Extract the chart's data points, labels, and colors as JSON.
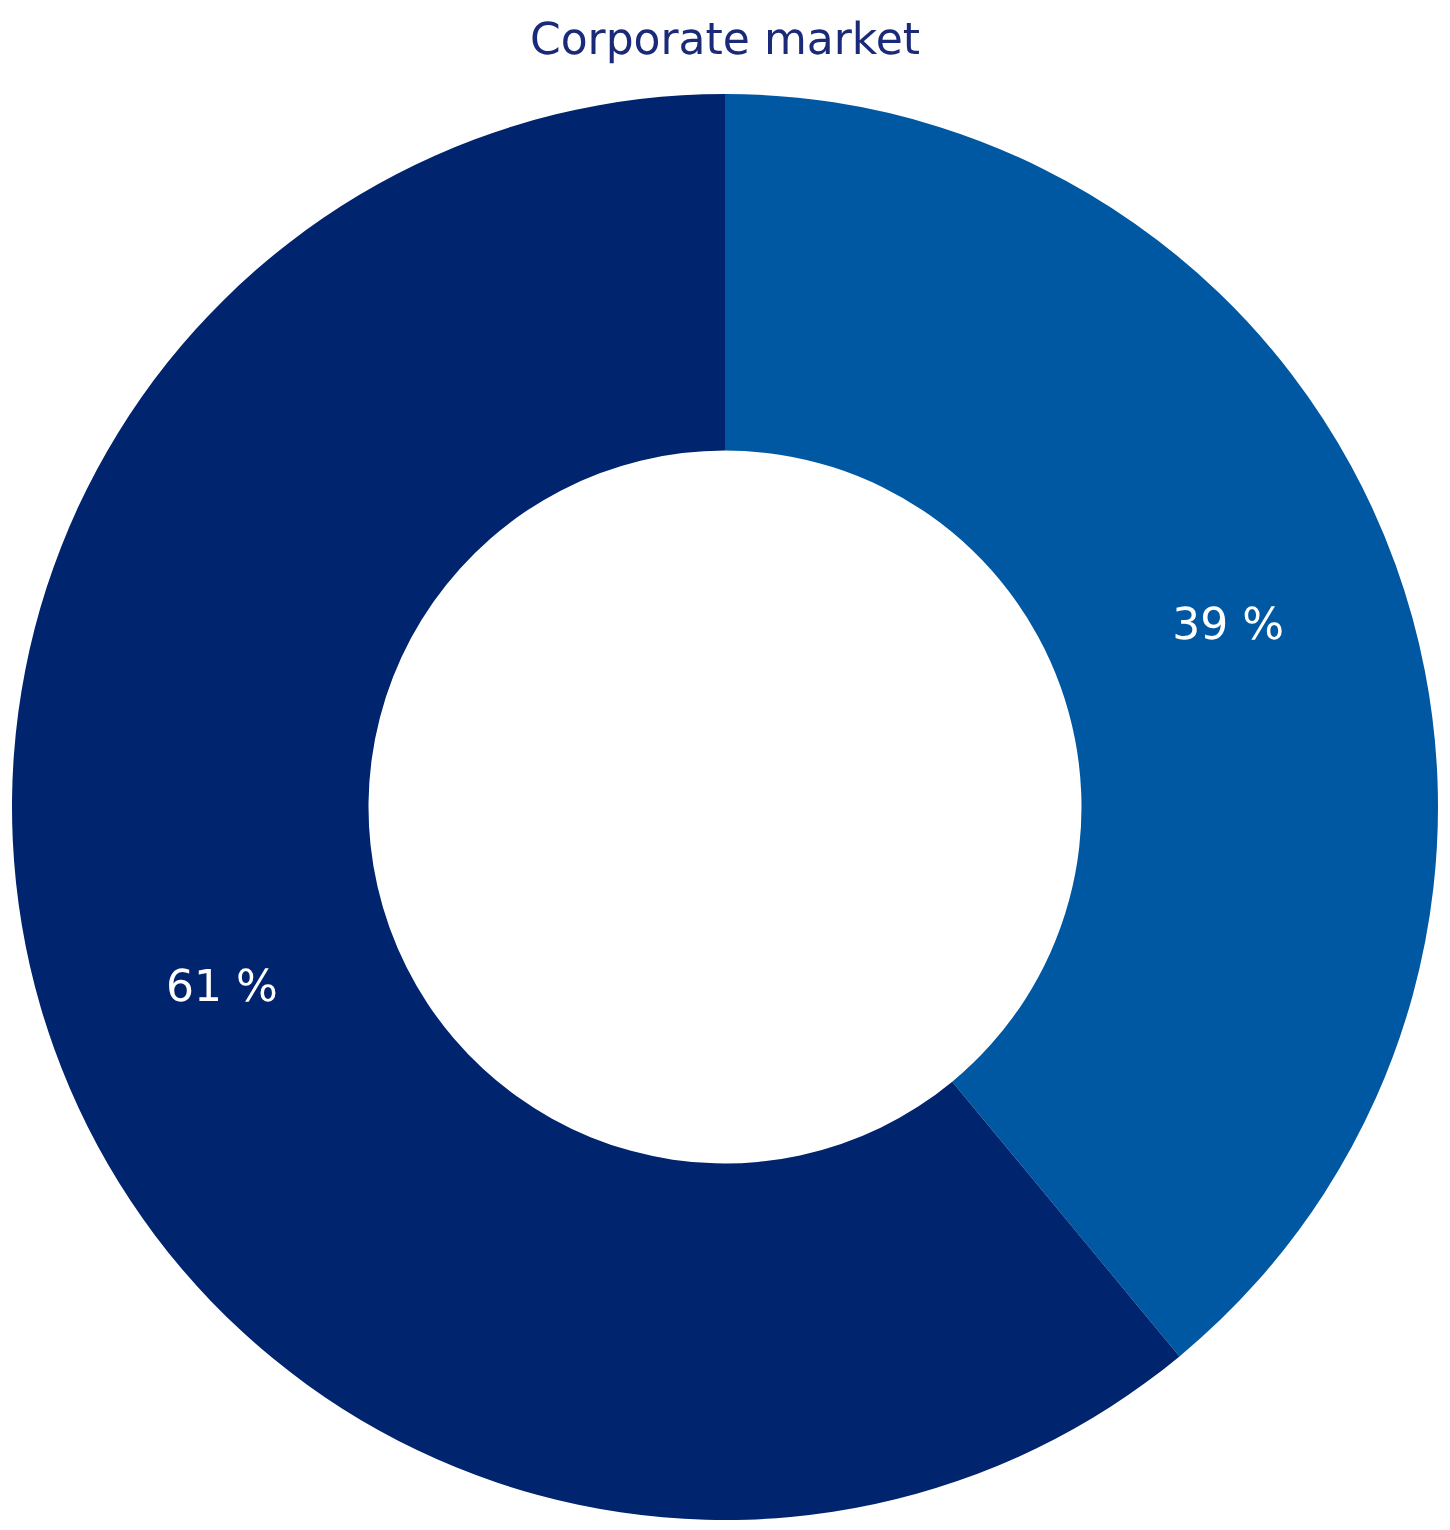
{
  "chart_data": {
    "type": "donut",
    "title": "Corporate market",
    "categories": [
      null,
      null
    ],
    "values": [
      39,
      61
    ],
    "colors": [
      "#0058a3",
      "#00246e"
    ],
    "value_labels": [
      "39 %",
      "61 %"
    ],
    "legend": false
  }
}
